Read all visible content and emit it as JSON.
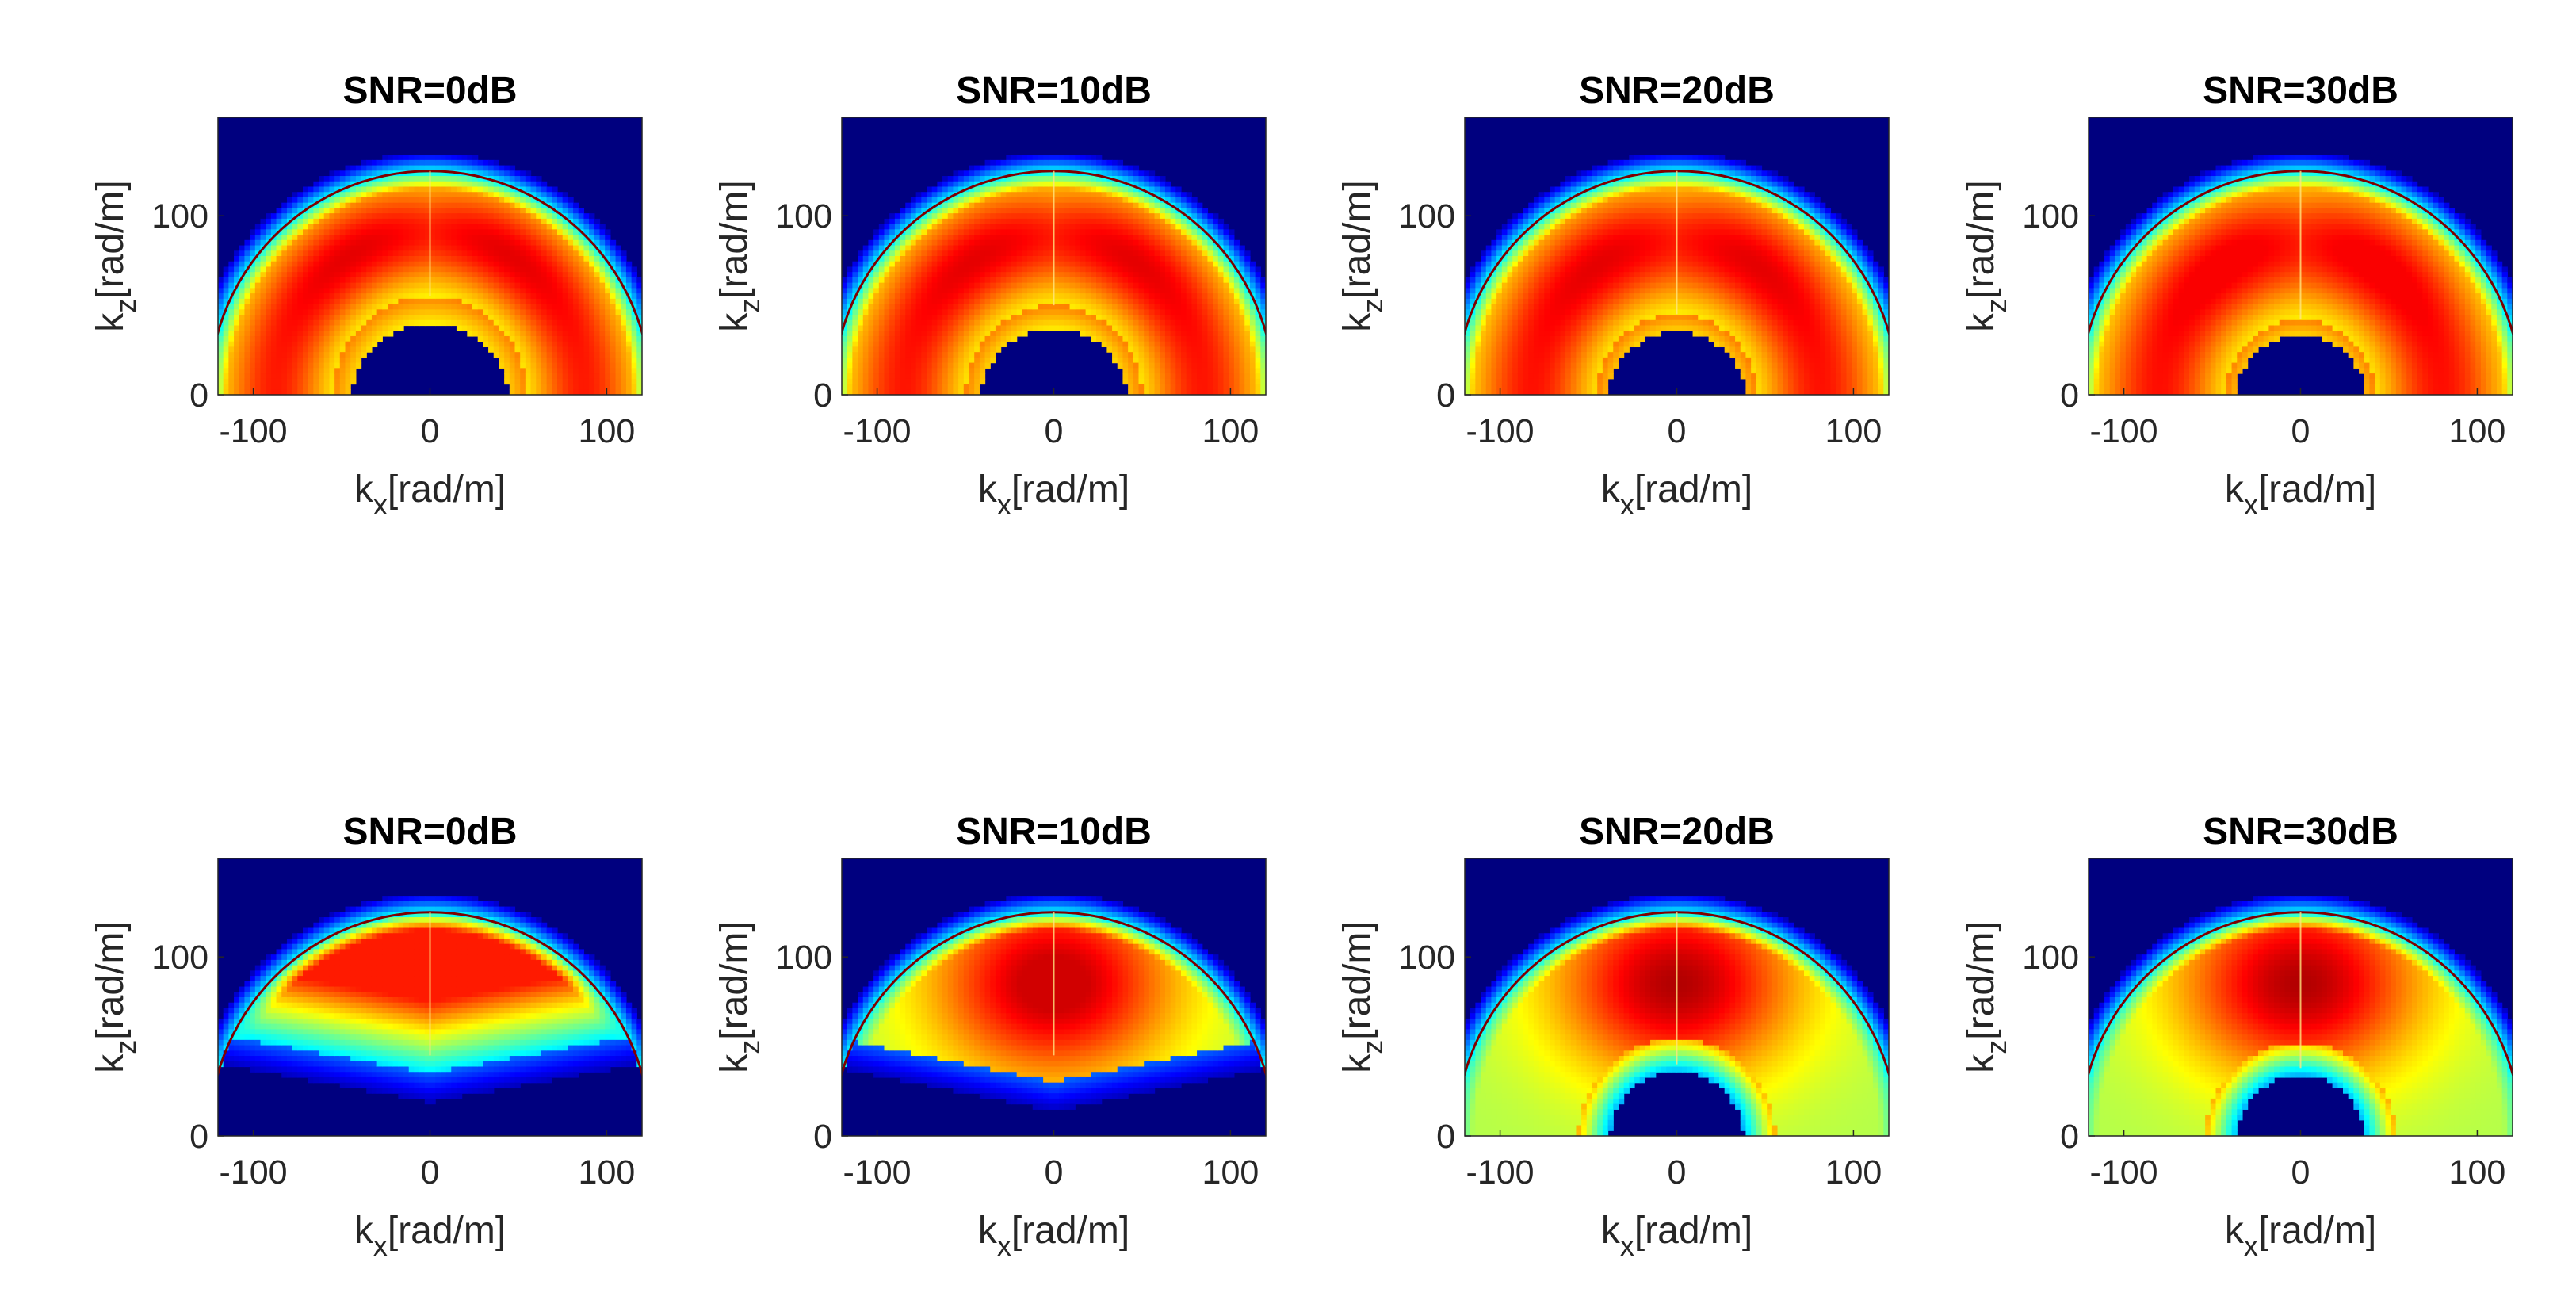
{
  "figure": {
    "rows": 2,
    "cols": 4,
    "colormap": "jet",
    "colors": {
      "background": "#00007f",
      "axis": "#262626",
      "titles": "#000000"
    }
  },
  "chart_data": [
    {
      "type": "heatmap",
      "row": 1,
      "col": 1,
      "title": "SNR=0dB",
      "snr_db": 0,
      "xlabel": "k_x[rad/m]",
      "ylabel": "k_z[rad/m]",
      "xlim": [
        -120,
        120
      ],
      "ylim": [
        0,
        155
      ],
      "xticks": [
        -100,
        0,
        100
      ],
      "yticks": [
        0,
        100
      ],
      "outer_radius": 125,
      "inner_radius": 55,
      "notch_radius": 45,
      "peak": 0.92,
      "concentration": "two-lobe"
    },
    {
      "type": "heatmap",
      "row": 1,
      "col": 2,
      "title": "SNR=10dB",
      "snr_db": 10,
      "xlabel": "k_x[rad/m]",
      "ylabel": "k_z[rad/m]",
      "xlim": [
        -120,
        120
      ],
      "ylim": [
        0,
        155
      ],
      "xticks": [
        -100,
        0,
        100
      ],
      "yticks": [
        0,
        100
      ],
      "outer_radius": 125,
      "inner_radius": 50,
      "notch_radius": 42,
      "peak": 0.92,
      "concentration": "two-lobe"
    },
    {
      "type": "heatmap",
      "row": 1,
      "col": 3,
      "title": "SNR=20dB",
      "snr_db": 20,
      "xlabel": "k_x[rad/m]",
      "ylabel": "k_z[rad/m]",
      "xlim": [
        -120,
        120
      ],
      "ylim": [
        0,
        155
      ],
      "xticks": [
        -100,
        0,
        100
      ],
      "yticks": [
        0,
        100
      ],
      "outer_radius": 125,
      "inner_radius": 45,
      "notch_radius": 40,
      "peak": 0.9,
      "concentration": "two-lobe"
    },
    {
      "type": "heatmap",
      "row": 1,
      "col": 4,
      "title": "SNR=30dB",
      "snr_db": 30,
      "xlabel": "k_x[rad/m]",
      "ylabel": "k_z[rad/m]",
      "xlim": [
        -120,
        120
      ],
      "ylim": [
        0,
        155
      ],
      "xticks": [
        -100,
        0,
        100
      ],
      "yticks": [
        0,
        100
      ],
      "outer_radius": 125,
      "inner_radius": 42,
      "notch_radius": 38,
      "peak": 0.88,
      "concentration": "two-lobe"
    },
    {
      "type": "heatmap",
      "row": 2,
      "col": 1,
      "title": "SNR=0dB",
      "snr_db": 0,
      "xlabel": "k_x[rad/m]",
      "ylabel": "k_z[rad/m]",
      "xlim": [
        -120,
        120
      ],
      "ylim": [
        0,
        155
      ],
      "xticks": [
        -100,
        0,
        100
      ],
      "yticks": [
        0,
        100
      ],
      "outer_radius": 125,
      "inner_radius": 0,
      "notch_radius": 0,
      "peak": 0.85,
      "concentration": "upper-band"
    },
    {
      "type": "heatmap",
      "row": 2,
      "col": 2,
      "title": "SNR=10dB",
      "snr_db": 10,
      "xlabel": "k_x[rad/m]",
      "ylabel": "k_z[rad/m]",
      "xlim": [
        -120,
        120
      ],
      "ylim": [
        0,
        155
      ],
      "xticks": [
        -100,
        0,
        100
      ],
      "yticks": [
        0,
        100
      ],
      "outer_radius": 125,
      "inner_radius": 0,
      "notch_radius": 0,
      "peak": 0.92,
      "concentration": "central"
    },
    {
      "type": "heatmap",
      "row": 2,
      "col": 3,
      "title": "SNR=20dB",
      "snr_db": 20,
      "xlabel": "k_x[rad/m]",
      "ylabel": "k_z[rad/m]",
      "xlim": [
        -120,
        120
      ],
      "ylim": [
        0,
        155
      ],
      "xticks": [
        -100,
        0,
        100
      ],
      "yticks": [
        0,
        100
      ],
      "outer_radius": 125,
      "inner_radius": 40,
      "notch_radius": 38,
      "peak": 0.95,
      "concentration": "central"
    },
    {
      "type": "heatmap",
      "row": 2,
      "col": 4,
      "title": "SNR=30dB",
      "snr_db": 30,
      "xlabel": "k_x[rad/m]",
      "ylabel": "k_z[rad/m]",
      "xlim": [
        -120,
        120
      ],
      "ylim": [
        0,
        155
      ],
      "xticks": [
        -100,
        0,
        100
      ],
      "yticks": [
        0,
        100
      ],
      "outer_radius": 125,
      "inner_radius": 38,
      "notch_radius": 36,
      "peak": 0.95,
      "concentration": "central"
    }
  ]
}
